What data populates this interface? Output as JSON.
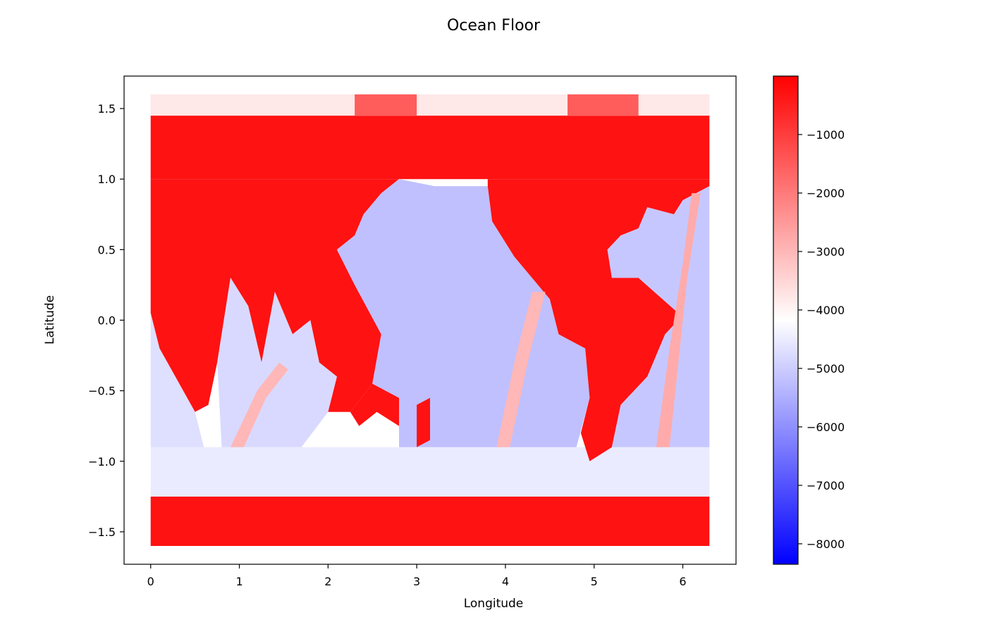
{
  "chart_data": {
    "type": "heatmap",
    "title": "Ocean Floor",
    "xlabel": "Longitude",
    "ylabel": "Latitude",
    "xlim": [
      -0.3,
      6.6
    ],
    "ylim": [
      -1.73,
      1.73
    ],
    "x_ticks": [
      0,
      1,
      2,
      3,
      4,
      5,
      6
    ],
    "x_tick_labels": [
      "0",
      "1",
      "2",
      "3",
      "4",
      "5",
      "6"
    ],
    "y_ticks": [
      1.5,
      1.0,
      0.5,
      0.0,
      -0.5,
      -1.0,
      -1.5
    ],
    "y_tick_labels": [
      "1.5",
      "1.0",
      "0.5",
      "0.0",
      "−0.5",
      "−1.0",
      "−1.5"
    ],
    "colorbar": {
      "colormap": "bwr",
      "range": [
        -8350,
        0
      ],
      "ticks": [
        -1000,
        -2000,
        -3000,
        -4000,
        -5000,
        -6000,
        -7000,
        -8000
      ],
      "tick_labels": [
        "−1000",
        "−2000",
        "−3000",
        "−4000",
        "−5000",
        "−6000",
        "−7000",
        "−8000"
      ]
    },
    "grid": false,
    "colors": {
      "low": "#0000ff",
      "mid": "#ffffff",
      "high": "#ff0000"
    },
    "regions": [
      {
        "name": "north-cap-land",
        "value": -300,
        "poly": [
          [
            0.0,
            1.0
          ],
          [
            6.3,
            1.0
          ],
          [
            6.3,
            1.45
          ],
          [
            0.0,
            1.45
          ]
        ]
      },
      {
        "name": "north-pole-band",
        "value": -3800,
        "poly": [
          [
            0.0,
            1.45
          ],
          [
            6.3,
            1.45
          ],
          [
            6.3,
            1.6
          ],
          [
            0.0,
            1.6
          ]
        ]
      },
      {
        "name": "north-pole-red",
        "value": -1500,
        "poly": [
          [
            2.3,
            1.45
          ],
          [
            3.0,
            1.45
          ],
          [
            3.0,
            1.6
          ],
          [
            2.3,
            1.6
          ]
        ]
      },
      {
        "name": "north-pole-red-2",
        "value": -1500,
        "poly": [
          [
            4.7,
            1.45
          ],
          [
            5.5,
            1.45
          ],
          [
            5.5,
            1.6
          ],
          [
            4.7,
            1.6
          ]
        ]
      },
      {
        "name": "south-cap-land",
        "value": -300,
        "poly": [
          [
            0.0,
            -1.6
          ],
          [
            6.3,
            -1.6
          ],
          [
            6.3,
            -1.25
          ],
          [
            0.0,
            -1.25
          ]
        ]
      },
      {
        "name": "southern-ocean",
        "value": -4500,
        "poly": [
          [
            0.0,
            -1.25
          ],
          [
            6.3,
            -1.25
          ],
          [
            6.3,
            -0.9
          ],
          [
            0.0,
            -0.9
          ]
        ]
      },
      {
        "name": "africa-eurasia",
        "value": -300,
        "poly": [
          [
            0.0,
            0.05
          ],
          [
            0.1,
            -0.2
          ],
          [
            0.5,
            -0.65
          ],
          [
            0.65,
            -0.6
          ],
          [
            0.75,
            -0.3
          ],
          [
            0.9,
            0.3
          ],
          [
            1.1,
            0.1
          ],
          [
            1.25,
            -0.3
          ],
          [
            1.4,
            0.2
          ],
          [
            1.6,
            -0.1
          ],
          [
            1.8,
            0.0
          ],
          [
            1.9,
            -0.3
          ],
          [
            2.1,
            -0.4
          ],
          [
            2.0,
            -0.65
          ],
          [
            2.25,
            -0.65
          ],
          [
            2.5,
            -0.45
          ],
          [
            2.6,
            -0.1
          ],
          [
            2.3,
            0.25
          ],
          [
            2.1,
            0.5
          ],
          [
            2.3,
            0.6
          ],
          [
            2.4,
            0.75
          ],
          [
            2.6,
            0.9
          ],
          [
            2.8,
            1.0
          ],
          [
            0.0,
            1.0
          ]
        ]
      },
      {
        "name": "indian-ocean",
        "value": -4700,
        "poly": [
          [
            0.0,
            0.05
          ],
          [
            0.1,
            -0.2
          ],
          [
            0.5,
            -0.65
          ],
          [
            0.6,
            -0.9
          ],
          [
            0.0,
            -0.9
          ]
        ]
      },
      {
        "name": "indian-ocean-2",
        "value": -4800,
        "poly": [
          [
            0.75,
            -0.3
          ],
          [
            0.9,
            0.3
          ],
          [
            1.1,
            0.1
          ],
          [
            1.25,
            -0.3
          ],
          [
            1.4,
            0.2
          ],
          [
            1.6,
            -0.1
          ],
          [
            1.8,
            0.0
          ],
          [
            1.9,
            -0.3
          ],
          [
            2.1,
            -0.4
          ],
          [
            2.0,
            -0.65
          ],
          [
            1.7,
            -0.9
          ],
          [
            0.8,
            -0.9
          ]
        ]
      },
      {
        "name": "australia",
        "value": -300,
        "poly": [
          [
            2.25,
            -0.65
          ],
          [
            2.5,
            -0.45
          ],
          [
            2.8,
            -0.55
          ],
          [
            2.8,
            -0.75
          ],
          [
            2.55,
            -0.65
          ],
          [
            2.35,
            -0.75
          ]
        ]
      },
      {
        "name": "pacific-ocean",
        "value": -5200,
        "poly": [
          [
            2.6,
            -0.1
          ],
          [
            2.3,
            0.25
          ],
          [
            2.1,
            0.5
          ],
          [
            2.3,
            0.6
          ],
          [
            2.4,
            0.75
          ],
          [
            2.6,
            0.9
          ],
          [
            2.8,
            1.0
          ],
          [
            3.2,
            0.95
          ],
          [
            3.8,
            0.95
          ],
          [
            3.85,
            0.7
          ],
          [
            4.1,
            0.45
          ],
          [
            4.5,
            0.15
          ],
          [
            4.6,
            -0.1
          ],
          [
            4.9,
            -0.2
          ],
          [
            4.95,
            -0.55
          ],
          [
            4.8,
            -0.9
          ],
          [
            2.8,
            -0.9
          ],
          [
            2.8,
            -0.55
          ],
          [
            2.5,
            -0.45
          ]
        ]
      },
      {
        "name": "new-zealand",
        "value": -300,
        "poly": [
          [
            3.0,
            -0.6
          ],
          [
            3.15,
            -0.55
          ],
          [
            3.15,
            -0.85
          ],
          [
            3.0,
            -0.9
          ]
        ]
      },
      {
        "name": "america",
        "value": -300,
        "poly": [
          [
            3.8,
            0.95
          ],
          [
            3.85,
            0.7
          ],
          [
            4.1,
            0.45
          ],
          [
            4.5,
            0.15
          ],
          [
            4.6,
            -0.1
          ],
          [
            4.9,
            -0.2
          ],
          [
            4.95,
            -0.55
          ],
          [
            4.85,
            -0.8
          ],
          [
            4.95,
            -1.0
          ],
          [
            5.2,
            -0.9
          ],
          [
            5.3,
            -0.6
          ],
          [
            5.6,
            -0.4
          ],
          [
            5.8,
            -0.1
          ],
          [
            5.95,
            0.0
          ],
          [
            5.95,
            0.05
          ],
          [
            5.5,
            0.3
          ],
          [
            5.2,
            0.3
          ],
          [
            5.15,
            0.5
          ],
          [
            5.3,
            0.6
          ],
          [
            5.5,
            0.65
          ],
          [
            5.6,
            0.8
          ],
          [
            5.9,
            0.75
          ],
          [
            6.0,
            0.85
          ],
          [
            6.3,
            0.95
          ],
          [
            6.3,
            1.0
          ],
          [
            3.8,
            1.0
          ]
        ]
      },
      {
        "name": "atlantic-ocean",
        "value": -5100,
        "poly": [
          [
            5.2,
            -0.9
          ],
          [
            5.3,
            -0.6
          ],
          [
            5.6,
            -0.4
          ],
          [
            5.8,
            -0.1
          ],
          [
            5.95,
            0.0
          ],
          [
            5.95,
            0.05
          ],
          [
            5.5,
            0.3
          ],
          [
            5.2,
            0.3
          ],
          [
            5.15,
            0.5
          ],
          [
            5.3,
            0.6
          ],
          [
            5.5,
            0.65
          ],
          [
            5.6,
            0.8
          ],
          [
            5.9,
            0.75
          ],
          [
            6.0,
            0.85
          ],
          [
            6.3,
            0.95
          ],
          [
            6.3,
            -0.9
          ]
        ]
      },
      {
        "name": "atlantic-ridge",
        "value": -2800,
        "poly": [
          [
            5.7,
            -0.9
          ],
          [
            5.85,
            -0.2
          ],
          [
            6.0,
            0.4
          ],
          [
            6.1,
            0.9
          ],
          [
            6.2,
            0.9
          ],
          [
            6.05,
            0.3
          ],
          [
            5.95,
            -0.3
          ],
          [
            5.85,
            -0.9
          ]
        ]
      },
      {
        "name": "east-pacific-rise",
        "value": -3000,
        "poly": [
          [
            3.9,
            -0.9
          ],
          [
            4.1,
            -0.3
          ],
          [
            4.3,
            0.2
          ],
          [
            4.45,
            0.2
          ],
          [
            4.25,
            -0.3
          ],
          [
            4.05,
            -0.9
          ]
        ]
      },
      {
        "name": "indian-ridge",
        "value": -3000,
        "poly": [
          [
            0.9,
            -0.9
          ],
          [
            1.2,
            -0.5
          ],
          [
            1.45,
            -0.3
          ],
          [
            1.55,
            -0.35
          ],
          [
            1.3,
            -0.55
          ],
          [
            1.05,
            -0.9
          ]
        ]
      }
    ]
  }
}
